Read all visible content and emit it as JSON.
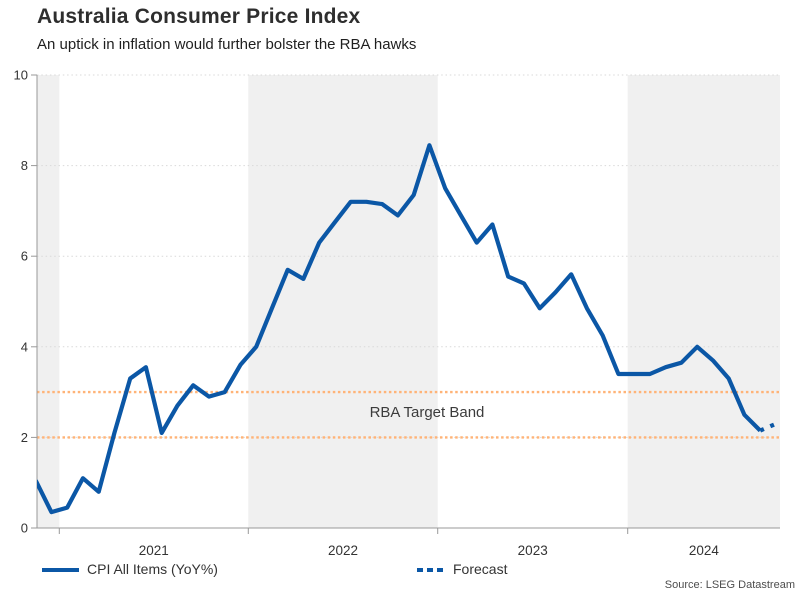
{
  "header": {
    "title": "Australia Consumer Price Index",
    "subtitle": "An uptick in inflation would further bolster the RBA hawks"
  },
  "legend": {
    "cpi_label": "CPI All Items (YoY%)",
    "forecast_label": "Forecast"
  },
  "source": "Source: LSEG Datastream",
  "chart_data": {
    "type": "line",
    "title": "Australia Consumer Price Index",
    "subtitle": "An uptick in inflation would further bolster the RBA hawks",
    "ylim": [
      0,
      10
    ],
    "yticks": [
      0,
      2,
      4,
      6,
      8,
      10
    ],
    "year_ticks": [
      "2021",
      "2022",
      "2023",
      "2024"
    ],
    "shaded_years": [
      "2020",
      "2022",
      "2024"
    ],
    "grid": "dotted-horizontal",
    "legend_position": "bottom",
    "target_band": {
      "label": "RBA Target Band",
      "low": 2,
      "high": 3,
      "color": "#ffb377"
    },
    "colors": {
      "line": "#0b57a6",
      "band_shade": "#f0f0f0",
      "gridline": "#d9d9d9",
      "axis": "#999999"
    },
    "series": [
      {
        "name": "CPI All Items (YoY%)",
        "style": "solid",
        "months": [
          "Nov-20",
          "Dec-20",
          "Jan-21",
          "Feb-21",
          "Mar-21",
          "Apr-21",
          "May-21",
          "Jun-21",
          "Jul-21",
          "Aug-21",
          "Sep-21",
          "Oct-21",
          "Nov-21",
          "Dec-21",
          "Jan-22",
          "Feb-22",
          "Mar-22",
          "Apr-22",
          "May-22",
          "Jun-22",
          "Jul-22",
          "Aug-22",
          "Sep-22",
          "Oct-22",
          "Nov-22",
          "Dec-22",
          "Jan-23",
          "Feb-23",
          "Mar-23",
          "Apr-23",
          "May-23",
          "Jun-23",
          "Jul-23",
          "Aug-23",
          "Sep-23",
          "Oct-23",
          "Nov-23",
          "Dec-23",
          "Jan-24",
          "Feb-24",
          "Mar-24",
          "Apr-24",
          "May-24",
          "Jun-24",
          "Jul-24",
          "Aug-24",
          "Sep-24"
        ],
        "values": [
          1.05,
          0.35,
          0.45,
          1.1,
          0.8,
          2.1,
          3.3,
          3.55,
          2.1,
          2.7,
          3.15,
          2.9,
          3.0,
          3.6,
          4.0,
          4.85,
          5.7,
          5.5,
          6.3,
          6.75,
          7.2,
          7.2,
          7.15,
          6.9,
          7.35,
          8.45,
          7.5,
          6.9,
          6.3,
          6.7,
          5.55,
          5.4,
          4.85,
          5.2,
          5.6,
          4.85,
          4.25,
          3.4,
          3.4,
          3.4,
          3.55,
          3.65,
          4.0,
          3.7,
          3.3,
          2.5,
          2.15
        ]
      },
      {
        "name": "Forecast",
        "style": "dotted",
        "months": [
          "Oct-24"
        ],
        "values": [
          2.3
        ]
      }
    ]
  }
}
